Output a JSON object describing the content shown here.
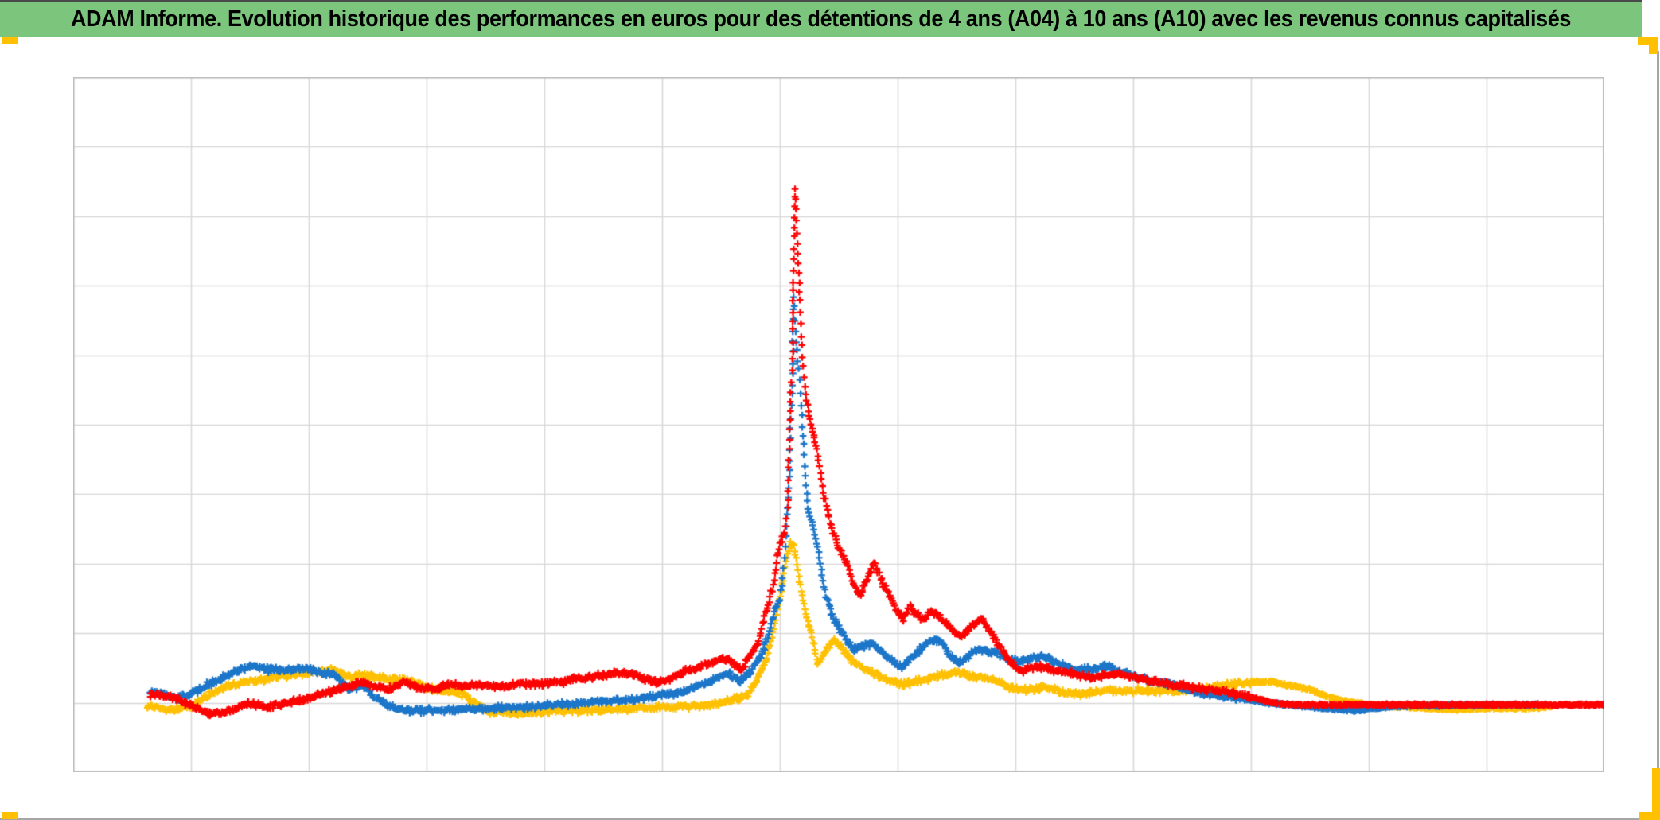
{
  "header": {
    "title": "ADAM Informe. Evolution historique des performances en euros pour des détentions de 4 ans (A04) à 10 ans (A10) avec les revenus connus capitalisés",
    "background_color": "#7CC57D",
    "text_color": "#000000"
  },
  "accents": {
    "color": "#FFC000"
  },
  "window": {
    "border_color": "#A6A6A6"
  },
  "chart_data": {
    "type": "scatter",
    "marker": "plus",
    "title": "",
    "legend": "none",
    "grid": "on",
    "grid_color": "#D8D8D8",
    "border_color": "#BDBDBD",
    "x_axis": {
      "labels_visible": false,
      "range": [
        0,
        13
      ],
      "gridline_step": 1
    },
    "y_axis": {
      "labels_visible": false,
      "range": [
        0,
        10
      ],
      "gridline_step": 1
    },
    "note": "Axes carry no tick labels in the screenshot; coordinates are expressed in gridline units (x: 0-13 columns, y: 0-10 rows measured from the bottom-left corner of the plot). All three series run flat near y=1, spike sharply at x=6.1 (red to 8.4, blue to 6.9, yellow to 3.3), then decay back to y=1.",
    "series": [
      {
        "name": "series-yellow",
        "color": "#FFC000",
        "keypoints": [
          [
            0.63,
            0.95
          ],
          [
            0.83,
            0.89
          ],
          [
            1.03,
            0.97
          ],
          [
            1.22,
            1.19
          ],
          [
            1.45,
            1.29
          ],
          [
            1.68,
            1.36
          ],
          [
            1.95,
            1.42
          ],
          [
            2.13,
            1.46
          ],
          [
            2.2,
            1.48
          ],
          [
            2.26,
            1.44
          ],
          [
            2.35,
            1.36
          ],
          [
            2.47,
            1.42
          ],
          [
            2.57,
            1.36
          ],
          [
            2.8,
            1.33
          ],
          [
            2.91,
            1.29
          ],
          [
            3.06,
            1.19
          ],
          [
            3.28,
            1.16
          ],
          [
            3.43,
            0.97
          ],
          [
            3.53,
            0.87
          ],
          [
            3.77,
            0.84
          ],
          [
            4.04,
            0.88
          ],
          [
            4.31,
            0.89
          ],
          [
            4.58,
            0.9
          ],
          [
            4.85,
            0.93
          ],
          [
            5.12,
            0.94
          ],
          [
            5.39,
            0.96
          ],
          [
            5.59,
            1.03
          ],
          [
            5.73,
            1.13
          ],
          [
            5.82,
            1.38
          ],
          [
            5.89,
            1.65
          ],
          [
            5.93,
            1.96
          ],
          [
            5.98,
            2.33
          ],
          [
            6.02,
            2.7
          ],
          [
            6.05,
            3.04
          ],
          [
            6.09,
            3.28
          ],
          [
            6.11,
            3.31
          ],
          [
            6.14,
            3.1
          ],
          [
            6.16,
            2.81
          ],
          [
            6.19,
            2.55
          ],
          [
            6.22,
            2.28
          ],
          [
            6.26,
            2.04
          ],
          [
            6.29,
            1.84
          ],
          [
            6.32,
            1.56
          ],
          [
            6.36,
            1.67
          ],
          [
            6.41,
            1.78
          ],
          [
            6.46,
            1.92
          ],
          [
            6.53,
            1.78
          ],
          [
            6.61,
            1.61
          ],
          [
            6.71,
            1.49
          ],
          [
            6.81,
            1.42
          ],
          [
            6.91,
            1.33
          ],
          [
            7.06,
            1.27
          ],
          [
            7.22,
            1.33
          ],
          [
            7.37,
            1.4
          ],
          [
            7.52,
            1.44
          ],
          [
            7.67,
            1.37
          ],
          [
            7.82,
            1.33
          ],
          [
            7.96,
            1.2
          ],
          [
            8.09,
            1.19
          ],
          [
            8.28,
            1.22
          ],
          [
            8.43,
            1.14
          ],
          [
            8.6,
            1.13
          ],
          [
            8.77,
            1.19
          ],
          [
            8.97,
            1.17
          ],
          [
            9.18,
            1.18
          ],
          [
            9.38,
            1.17
          ],
          [
            9.61,
            1.21
          ],
          [
            9.82,
            1.27
          ],
          [
            10.02,
            1.3
          ],
          [
            10.19,
            1.3
          ],
          [
            10.29,
            1.26
          ],
          [
            10.49,
            1.2
          ],
          [
            10.63,
            1.1
          ],
          [
            10.8,
            1.02
          ],
          [
            11.0,
            0.97
          ],
          [
            11.2,
            0.95
          ],
          [
            11.47,
            0.92
          ],
          [
            11.74,
            0.9
          ],
          [
            12.01,
            0.92
          ],
          [
            12.28,
            0.92
          ],
          [
            12.55,
            0.94
          ]
        ]
      },
      {
        "name": "series-blue",
        "color": "#1B75C8",
        "keypoints": [
          [
            0.65,
            1.16
          ],
          [
            0.88,
            1.06
          ],
          [
            1.1,
            1.22
          ],
          [
            1.22,
            1.33
          ],
          [
            1.34,
            1.42
          ],
          [
            1.52,
            1.54
          ],
          [
            1.64,
            1.48
          ],
          [
            1.81,
            1.46
          ],
          [
            1.98,
            1.49
          ],
          [
            2.11,
            1.43
          ],
          [
            2.2,
            1.41
          ],
          [
            2.26,
            1.33
          ],
          [
            2.35,
            1.18
          ],
          [
            2.45,
            1.25
          ],
          [
            2.57,
            1.08
          ],
          [
            2.69,
            0.94
          ],
          [
            2.82,
            0.89
          ],
          [
            3.06,
            0.89
          ],
          [
            3.33,
            0.9
          ],
          [
            3.6,
            0.92
          ],
          [
            3.87,
            0.94
          ],
          [
            4.11,
            0.98
          ],
          [
            4.38,
            1.0
          ],
          [
            4.65,
            1.03
          ],
          [
            4.92,
            1.09
          ],
          [
            5.12,
            1.14
          ],
          [
            5.32,
            1.24
          ],
          [
            5.46,
            1.35
          ],
          [
            5.57,
            1.42
          ],
          [
            5.66,
            1.32
          ],
          [
            5.76,
            1.46
          ],
          [
            5.85,
            1.73
          ],
          [
            5.91,
            2.01
          ],
          [
            5.96,
            2.36
          ],
          [
            6.0,
            2.47
          ],
          [
            6.03,
            2.93
          ],
          [
            6.06,
            3.56
          ],
          [
            6.08,
            4.24
          ],
          [
            6.09,
            4.93
          ],
          [
            6.11,
            5.73
          ],
          [
            6.11,
            6.36
          ],
          [
            6.12,
            6.85
          ],
          [
            6.14,
            6.19
          ],
          [
            6.16,
            5.79
          ],
          [
            6.18,
            5.27
          ],
          [
            6.2,
            4.7
          ],
          [
            6.22,
            4.13
          ],
          [
            6.24,
            3.79
          ],
          [
            6.28,
            3.56
          ],
          [
            6.32,
            3.24
          ],
          [
            6.35,
            2.93
          ],
          [
            6.39,
            2.55
          ],
          [
            6.44,
            2.28
          ],
          [
            6.49,
            2.11
          ],
          [
            6.55,
            1.96
          ],
          [
            6.62,
            1.77
          ],
          [
            6.71,
            1.82
          ],
          [
            6.79,
            1.85
          ],
          [
            6.88,
            1.7
          ],
          [
            6.96,
            1.59
          ],
          [
            7.03,
            1.5
          ],
          [
            7.11,
            1.64
          ],
          [
            7.2,
            1.78
          ],
          [
            7.28,
            1.89
          ],
          [
            7.35,
            1.9
          ],
          [
            7.44,
            1.69
          ],
          [
            7.53,
            1.58
          ],
          [
            7.64,
            1.73
          ],
          [
            7.74,
            1.76
          ],
          [
            7.84,
            1.73
          ],
          [
            7.93,
            1.62
          ],
          [
            8.03,
            1.59
          ],
          [
            8.13,
            1.64
          ],
          [
            8.23,
            1.68
          ],
          [
            8.33,
            1.59
          ],
          [
            8.43,
            1.51
          ],
          [
            8.55,
            1.46
          ],
          [
            8.67,
            1.5
          ],
          [
            8.78,
            1.52
          ],
          [
            8.91,
            1.44
          ],
          [
            9.04,
            1.37
          ],
          [
            9.21,
            1.3
          ],
          [
            9.34,
            1.26
          ],
          [
            9.48,
            1.18
          ],
          [
            9.61,
            1.13
          ],
          [
            9.75,
            1.1
          ],
          [
            9.92,
            1.06
          ],
          [
            10.09,
            1.01
          ],
          [
            10.29,
            0.97
          ],
          [
            10.53,
            0.94
          ],
          [
            10.76,
            0.9
          ],
          [
            10.9,
            0.89
          ],
          [
            11.03,
            0.92
          ],
          [
            11.27,
            0.95
          ],
          [
            11.61,
            0.96
          ],
          [
            12.01,
            0.97
          ],
          [
            12.42,
            0.97
          ]
        ]
      },
      {
        "name": "series-red",
        "color": "#FE0000",
        "keypoints": [
          [
            0.65,
            1.13
          ],
          [
            0.83,
            1.08
          ],
          [
            1.0,
            0.96
          ],
          [
            1.17,
            0.84
          ],
          [
            1.34,
            0.89
          ],
          [
            1.47,
            1.0
          ],
          [
            1.64,
            0.94
          ],
          [
            1.81,
            1.0
          ],
          [
            1.98,
            1.06
          ],
          [
            2.15,
            1.14
          ],
          [
            2.28,
            1.21
          ],
          [
            2.42,
            1.29
          ],
          [
            2.55,
            1.26
          ],
          [
            2.67,
            1.19
          ],
          [
            2.8,
            1.29
          ],
          [
            2.94,
            1.22
          ],
          [
            3.06,
            1.18
          ],
          [
            3.18,
            1.27
          ],
          [
            3.3,
            1.24
          ],
          [
            3.47,
            1.26
          ],
          [
            3.64,
            1.22
          ],
          [
            3.8,
            1.28
          ],
          [
            3.97,
            1.27
          ],
          [
            4.14,
            1.3
          ],
          [
            4.31,
            1.36
          ],
          [
            4.51,
            1.4
          ],
          [
            4.72,
            1.44
          ],
          [
            4.86,
            1.33
          ],
          [
            4.97,
            1.28
          ],
          [
            5.09,
            1.37
          ],
          [
            5.2,
            1.46
          ],
          [
            5.32,
            1.5
          ],
          [
            5.44,
            1.6
          ],
          [
            5.55,
            1.65
          ],
          [
            5.63,
            1.54
          ],
          [
            5.68,
            1.48
          ],
          [
            5.75,
            1.69
          ],
          [
            5.82,
            1.88
          ],
          [
            5.87,
            2.24
          ],
          [
            5.91,
            2.45
          ],
          [
            5.95,
            2.76
          ],
          [
            5.98,
            3.1
          ],
          [
            6.01,
            3.33
          ],
          [
            6.04,
            3.42
          ],
          [
            6.07,
            3.9
          ],
          [
            6.08,
            4.65
          ],
          [
            6.09,
            5.33
          ],
          [
            6.11,
            6.08
          ],
          [
            6.11,
            6.76
          ],
          [
            6.12,
            7.68
          ],
          [
            6.13,
            8.42
          ],
          [
            6.14,
            7.91
          ],
          [
            6.16,
            7.33
          ],
          [
            6.17,
            6.78
          ],
          [
            6.18,
            6.28
          ],
          [
            6.2,
            5.82
          ],
          [
            6.22,
            5.42
          ],
          [
            6.25,
            5.14
          ],
          [
            6.28,
            4.91
          ],
          [
            6.3,
            4.75
          ],
          [
            6.33,
            4.51
          ],
          [
            6.36,
            4.11
          ],
          [
            6.41,
            3.7
          ],
          [
            6.46,
            3.42
          ],
          [
            6.51,
            3.19
          ],
          [
            6.57,
            3.01
          ],
          [
            6.62,
            2.72
          ],
          [
            6.68,
            2.53
          ],
          [
            6.74,
            2.78
          ],
          [
            6.8,
            3.01
          ],
          [
            6.85,
            2.8
          ],
          [
            6.91,
            2.62
          ],
          [
            6.96,
            2.44
          ],
          [
            7.01,
            2.28
          ],
          [
            7.05,
            2.19
          ],
          [
            7.1,
            2.38
          ],
          [
            7.16,
            2.28
          ],
          [
            7.22,
            2.2
          ],
          [
            7.27,
            2.28
          ],
          [
            7.32,
            2.3
          ],
          [
            7.39,
            2.17
          ],
          [
            7.45,
            2.08
          ],
          [
            7.5,
            1.99
          ],
          [
            7.55,
            1.96
          ],
          [
            7.61,
            2.07
          ],
          [
            7.66,
            2.15
          ],
          [
            7.72,
            2.21
          ],
          [
            7.78,
            2.03
          ],
          [
            7.84,
            1.88
          ],
          [
            7.89,
            1.73
          ],
          [
            7.95,
            1.61
          ],
          [
            8.01,
            1.49
          ],
          [
            8.07,
            1.46
          ],
          [
            8.13,
            1.51
          ],
          [
            8.2,
            1.53
          ],
          [
            8.26,
            1.5
          ],
          [
            8.34,
            1.46
          ],
          [
            8.43,
            1.43
          ],
          [
            8.53,
            1.4
          ],
          [
            8.65,
            1.36
          ],
          [
            8.76,
            1.38
          ],
          [
            8.86,
            1.41
          ],
          [
            8.97,
            1.38
          ],
          [
            9.09,
            1.33
          ],
          [
            9.21,
            1.29
          ],
          [
            9.32,
            1.26
          ],
          [
            9.45,
            1.24
          ],
          [
            9.58,
            1.2
          ],
          [
            9.73,
            1.18
          ],
          [
            9.86,
            1.13
          ],
          [
            10.0,
            1.08
          ],
          [
            10.14,
            1.02
          ],
          [
            10.27,
            0.98
          ],
          [
            10.46,
            0.97
          ],
          [
            10.86,
            0.97
          ],
          [
            11.41,
            0.97
          ],
          [
            11.95,
            0.97
          ],
          [
            12.49,
            0.97
          ],
          [
            13.01,
            0.97
          ]
        ]
      }
    ]
  }
}
